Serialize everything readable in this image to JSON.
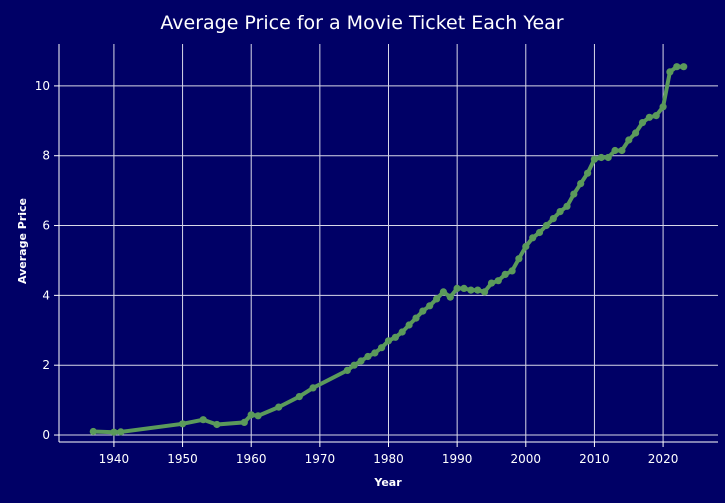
{
  "chart_data": {
    "type": "line",
    "title": "Average Price for a Movie Ticket Each Year",
    "xlabel": "Year",
    "ylabel": "Average Price",
    "xlim": [
      1932,
      2028
    ],
    "ylim": [
      -0.2,
      11.2
    ],
    "x_ticks": [
      1940,
      1950,
      1960,
      1970,
      1980,
      1990,
      2000,
      2010,
      2020
    ],
    "y_ticks": [
      0,
      2,
      4,
      6,
      8,
      10
    ],
    "grid": true,
    "series": [
      {
        "color": "#5b9a5b",
        "points": [
          [
            1937,
            0.1
          ],
          [
            1940,
            0.08
          ],
          [
            1941,
            0.09
          ],
          [
            1950,
            0.32
          ],
          [
            1953,
            0.44
          ],
          [
            1955,
            0.3
          ],
          [
            1959,
            0.36
          ],
          [
            1960,
            0.58
          ],
          [
            1961,
            0.55
          ],
          [
            1964,
            0.8
          ],
          [
            1967,
            1.1
          ],
          [
            1969,
            1.35
          ],
          [
            1974,
            1.85
          ],
          [
            1975,
            2.0
          ],
          [
            1976,
            2.12
          ],
          [
            1977,
            2.25
          ],
          [
            1978,
            2.35
          ],
          [
            1979,
            2.5
          ],
          [
            1980,
            2.7
          ],
          [
            1981,
            2.8
          ],
          [
            1982,
            2.95
          ],
          [
            1983,
            3.15
          ],
          [
            1984,
            3.35
          ],
          [
            1985,
            3.55
          ],
          [
            1986,
            3.7
          ],
          [
            1987,
            3.9
          ],
          [
            1988,
            4.1
          ],
          [
            1989,
            3.95
          ],
          [
            1990,
            4.2
          ],
          [
            1991,
            4.2
          ],
          [
            1992,
            4.15
          ],
          [
            1993,
            4.15
          ],
          [
            1994,
            4.1
          ],
          [
            1995,
            4.35
          ],
          [
            1996,
            4.42
          ],
          [
            1997,
            4.6
          ],
          [
            1998,
            4.7
          ],
          [
            1999,
            5.05
          ],
          [
            2000,
            5.4
          ],
          [
            2001,
            5.65
          ],
          [
            2002,
            5.8
          ],
          [
            2003,
            6.0
          ],
          [
            2004,
            6.2
          ],
          [
            2005,
            6.4
          ],
          [
            2006,
            6.55
          ],
          [
            2007,
            6.9
          ],
          [
            2008,
            7.2
          ],
          [
            2009,
            7.5
          ],
          [
            2010,
            7.9
          ],
          [
            2011,
            7.95
          ],
          [
            2012,
            7.95
          ],
          [
            2013,
            8.15
          ],
          [
            2014,
            8.15
          ],
          [
            2015,
            8.45
          ],
          [
            2016,
            8.65
          ],
          [
            2017,
            8.95
          ],
          [
            2018,
            9.1
          ],
          [
            2019,
            9.15
          ],
          [
            2020,
            9.4
          ],
          [
            2021,
            10.4
          ],
          [
            2022,
            10.55
          ],
          [
            2023,
            10.55
          ]
        ]
      }
    ]
  }
}
